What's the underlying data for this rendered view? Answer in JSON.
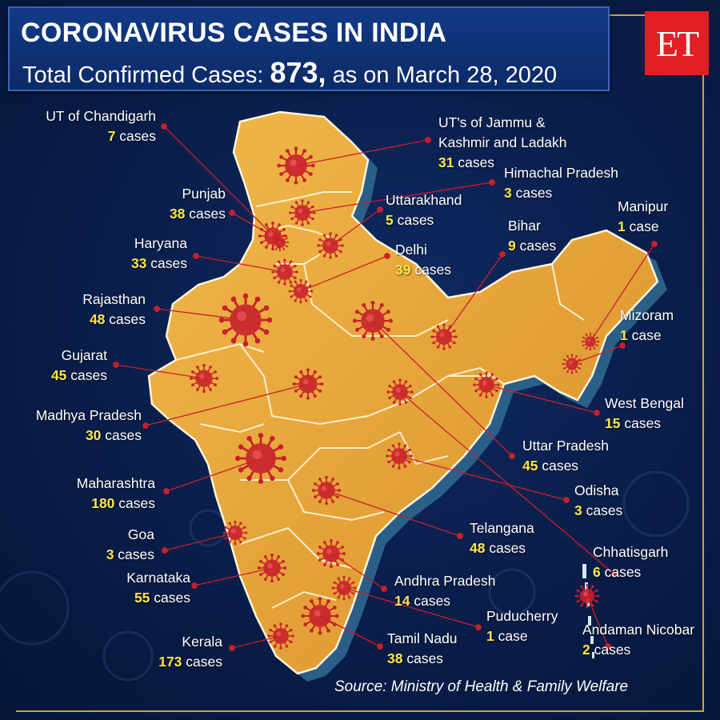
{
  "header": {
    "title": "CORONAVIRUS CASES IN INDIA",
    "subtitle_prefix": "Total Confirmed Cases: ",
    "total": "873,",
    "subtitle_suffix": " as on March 28, 2020"
  },
  "logo": {
    "text": "ET",
    "color": "#e31e24"
  },
  "source": "Source: Ministry of Health & Family Welfare",
  "colors": {
    "map_fill": "#e7a53a",
    "map_shadow": "#2a5f88",
    "virus": "#c8202a",
    "highlight": "#ffe54a"
  },
  "states": [
    {
      "id": "chandigarh",
      "name": "UT of Chandigarh",
      "num": "7",
      "unit": " cases"
    },
    {
      "id": "jk",
      "name": "UT's of Jammu &",
      "name2": "Kashmir and Ladakh",
      "num": "31",
      "unit": " cases"
    },
    {
      "id": "himachal",
      "name": "Himachal Pradesh",
      "num": "3",
      "unit": " cases"
    },
    {
      "id": "punjab",
      "name": "Punjab",
      "num": "38",
      "unit": " cases"
    },
    {
      "id": "uttarakhand",
      "name": "Uttarakhand",
      "num": "5",
      "unit": " cases"
    },
    {
      "id": "manipur",
      "name": "Manipur",
      "num": "1",
      "unit": " case"
    },
    {
      "id": "bihar",
      "name": "Bihar",
      "num": "9",
      "unit": " cases"
    },
    {
      "id": "haryana",
      "name": "Haryana",
      "num": "33",
      "unit": " cases"
    },
    {
      "id": "delhi",
      "name": "Delhi",
      "num": "39",
      "unit": " cases"
    },
    {
      "id": "rajasthan",
      "name": "Rajasthan",
      "num": "48",
      "unit": " cases"
    },
    {
      "id": "mizoram",
      "name": "Mizoram",
      "num": "1",
      "unit": " case"
    },
    {
      "id": "gujarat",
      "name": "Gujarat",
      "num": "45",
      "unit": " cases"
    },
    {
      "id": "westbengal",
      "name": "West Bengal",
      "num": "15",
      "unit": " cases"
    },
    {
      "id": "mp",
      "name": "Madhya Pradesh",
      "num": "30",
      "unit": " cases"
    },
    {
      "id": "up",
      "name": "Uttar Pradesh",
      "num": "45",
      "unit": " cases"
    },
    {
      "id": "maharashtra",
      "name": "Maharashtra",
      "num": "180",
      "unit": " cases"
    },
    {
      "id": "odisha",
      "name": "Odisha",
      "num": "3",
      "unit": " cases"
    },
    {
      "id": "telangana",
      "name": "Telangana",
      "num": "48",
      "unit": " cases"
    },
    {
      "id": "goa",
      "name": "Goa",
      "num": "3",
      "unit": " cases"
    },
    {
      "id": "chhatisgarh",
      "name": "Chhatisgarh",
      "num": "6",
      "unit": " cases"
    },
    {
      "id": "karnataka",
      "name": "Karnataka",
      "num": "55",
      "unit": " cases"
    },
    {
      "id": "andhra",
      "name": "Andhra Pradesh",
      "num": "14",
      "unit": " cases"
    },
    {
      "id": "puducherry",
      "name": "Puducherry",
      "num": "1",
      "unit": " case"
    },
    {
      "id": "andaman",
      "name": "Andaman Nicobar",
      "num": "2",
      "unit": " cases"
    },
    {
      "id": "kerala",
      "name": "Kerala",
      "num": "173",
      "unit": " cases"
    },
    {
      "id": "tamilnadu",
      "name": "Tamil Nadu",
      "num": "38",
      "unit": " cases"
    }
  ]
}
